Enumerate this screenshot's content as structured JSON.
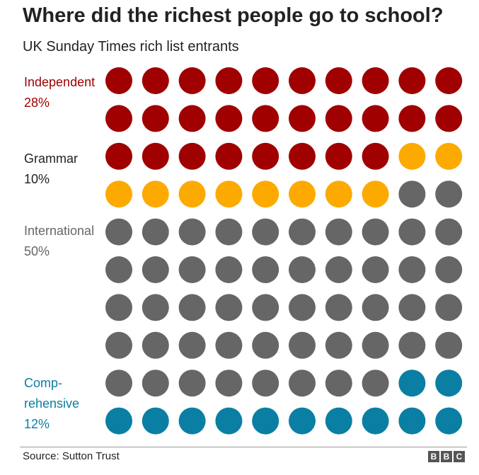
{
  "chart_data": {
    "type": "waffle",
    "title": "Where did the richest people go to school?",
    "subtitle": "UK Sunday Times rich list entrants",
    "grid": {
      "rows": 10,
      "cols": 10
    },
    "categories": [
      {
        "key": "independent",
        "label_lines": [
          "Independent",
          "28%"
        ],
        "percent": 28,
        "color": "#a00000"
      },
      {
        "key": "grammar",
        "label_lines": [
          "Grammar",
          "10%"
        ],
        "percent": 10,
        "color": "#fdaa00"
      },
      {
        "key": "international",
        "label_lines": [
          "International",
          "50%"
        ],
        "percent": 50,
        "color": "#666666"
      },
      {
        "key": "comprehensive",
        "label_lines": [
          "Comp-",
          "rehensive",
          "12%"
        ],
        "percent": 12,
        "color": "#0a7fa3"
      }
    ],
    "source": "Source: Sutton Trust"
  },
  "branding": {
    "logo": [
      "B",
      "B",
      "C"
    ]
  }
}
